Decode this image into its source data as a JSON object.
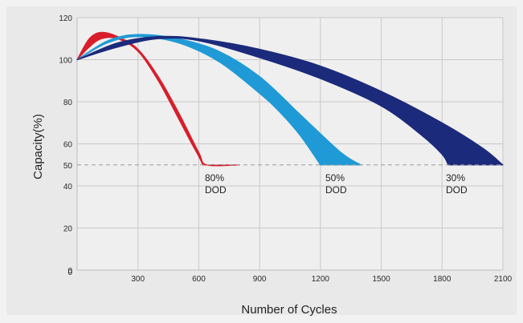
{
  "chart_data": {
    "type": "area",
    "xlabel": "Number of Cycles",
    "ylabel": "Capacity(%)",
    "xlim": [
      0,
      2100
    ],
    "ylim": [
      0,
      120
    ],
    "x_ticks": [
      300,
      600,
      900,
      1200,
      1500,
      1800,
      2100
    ],
    "y_ticks": [
      0,
      20,
      40,
      50,
      60,
      80,
      100,
      120
    ],
    "x_tick_labels": [
      "300",
      "600",
      "900",
      "1200",
      "1500",
      "1800",
      "2100"
    ],
    "y_tick_labels": [
      "0",
      "20",
      "40",
      "50",
      "60",
      "80",
      "100",
      "120"
    ],
    "origin_tick_label": "0",
    "grid": true,
    "reference_line": {
      "y": 50,
      "style": "dashed"
    },
    "series": [
      {
        "name": "80% DOD",
        "label_lines": [
          "80%",
          "DOD"
        ],
        "color": "#d81e2a",
        "upper": [
          [
            0,
            100
          ],
          [
            60,
            110
          ],
          [
            120,
            113
          ],
          [
            200,
            111
          ],
          [
            300,
            105
          ],
          [
            400,
            92
          ],
          [
            500,
            75
          ],
          [
            600,
            56
          ],
          [
            640,
            50
          ],
          [
            800,
            50
          ]
        ],
        "lower": [
          [
            0,
            100
          ],
          [
            60,
            106
          ],
          [
            120,
            110
          ],
          [
            200,
            110
          ],
          [
            300,
            104
          ],
          [
            400,
            90
          ],
          [
            500,
            72
          ],
          [
            560,
            61
          ],
          [
            600,
            54
          ],
          [
            620,
            50
          ]
        ]
      },
      {
        "name": "50% DOD",
        "label_lines": [
          "50%",
          "DOD"
        ],
        "color": "#1f9ad6",
        "upper": [
          [
            0,
            100
          ],
          [
            150,
            109
          ],
          [
            300,
            112
          ],
          [
            500,
            110
          ],
          [
            700,
            104
          ],
          [
            900,
            92
          ],
          [
            1100,
            74
          ],
          [
            1300,
            56
          ],
          [
            1400,
            50
          ]
        ],
        "lower": [
          [
            0,
            100
          ],
          [
            150,
            108
          ],
          [
            300,
            111
          ],
          [
            500,
            108
          ],
          [
            700,
            99
          ],
          [
            900,
            84
          ],
          [
            1000,
            75
          ],
          [
            1100,
            64
          ],
          [
            1200,
            50
          ]
        ]
      },
      {
        "name": "30% DOD",
        "label_lines": [
          "30%",
          "DOD"
        ],
        "color": "#1c2a7c",
        "upper": [
          [
            0,
            100
          ],
          [
            200,
            108
          ],
          [
            400,
            111
          ],
          [
            600,
            110
          ],
          [
            900,
            105
          ],
          [
            1200,
            97
          ],
          [
            1500,
            85
          ],
          [
            1800,
            70
          ],
          [
            2000,
            58
          ],
          [
            2100,
            50
          ]
        ],
        "lower": [
          [
            0,
            100
          ],
          [
            200,
            106
          ],
          [
            400,
            110
          ],
          [
            600,
            109
          ],
          [
            900,
            101
          ],
          [
            1200,
            91
          ],
          [
            1500,
            78
          ],
          [
            1700,
            64
          ],
          [
            1800,
            55
          ],
          [
            1830,
            50
          ]
        ]
      }
    ]
  }
}
